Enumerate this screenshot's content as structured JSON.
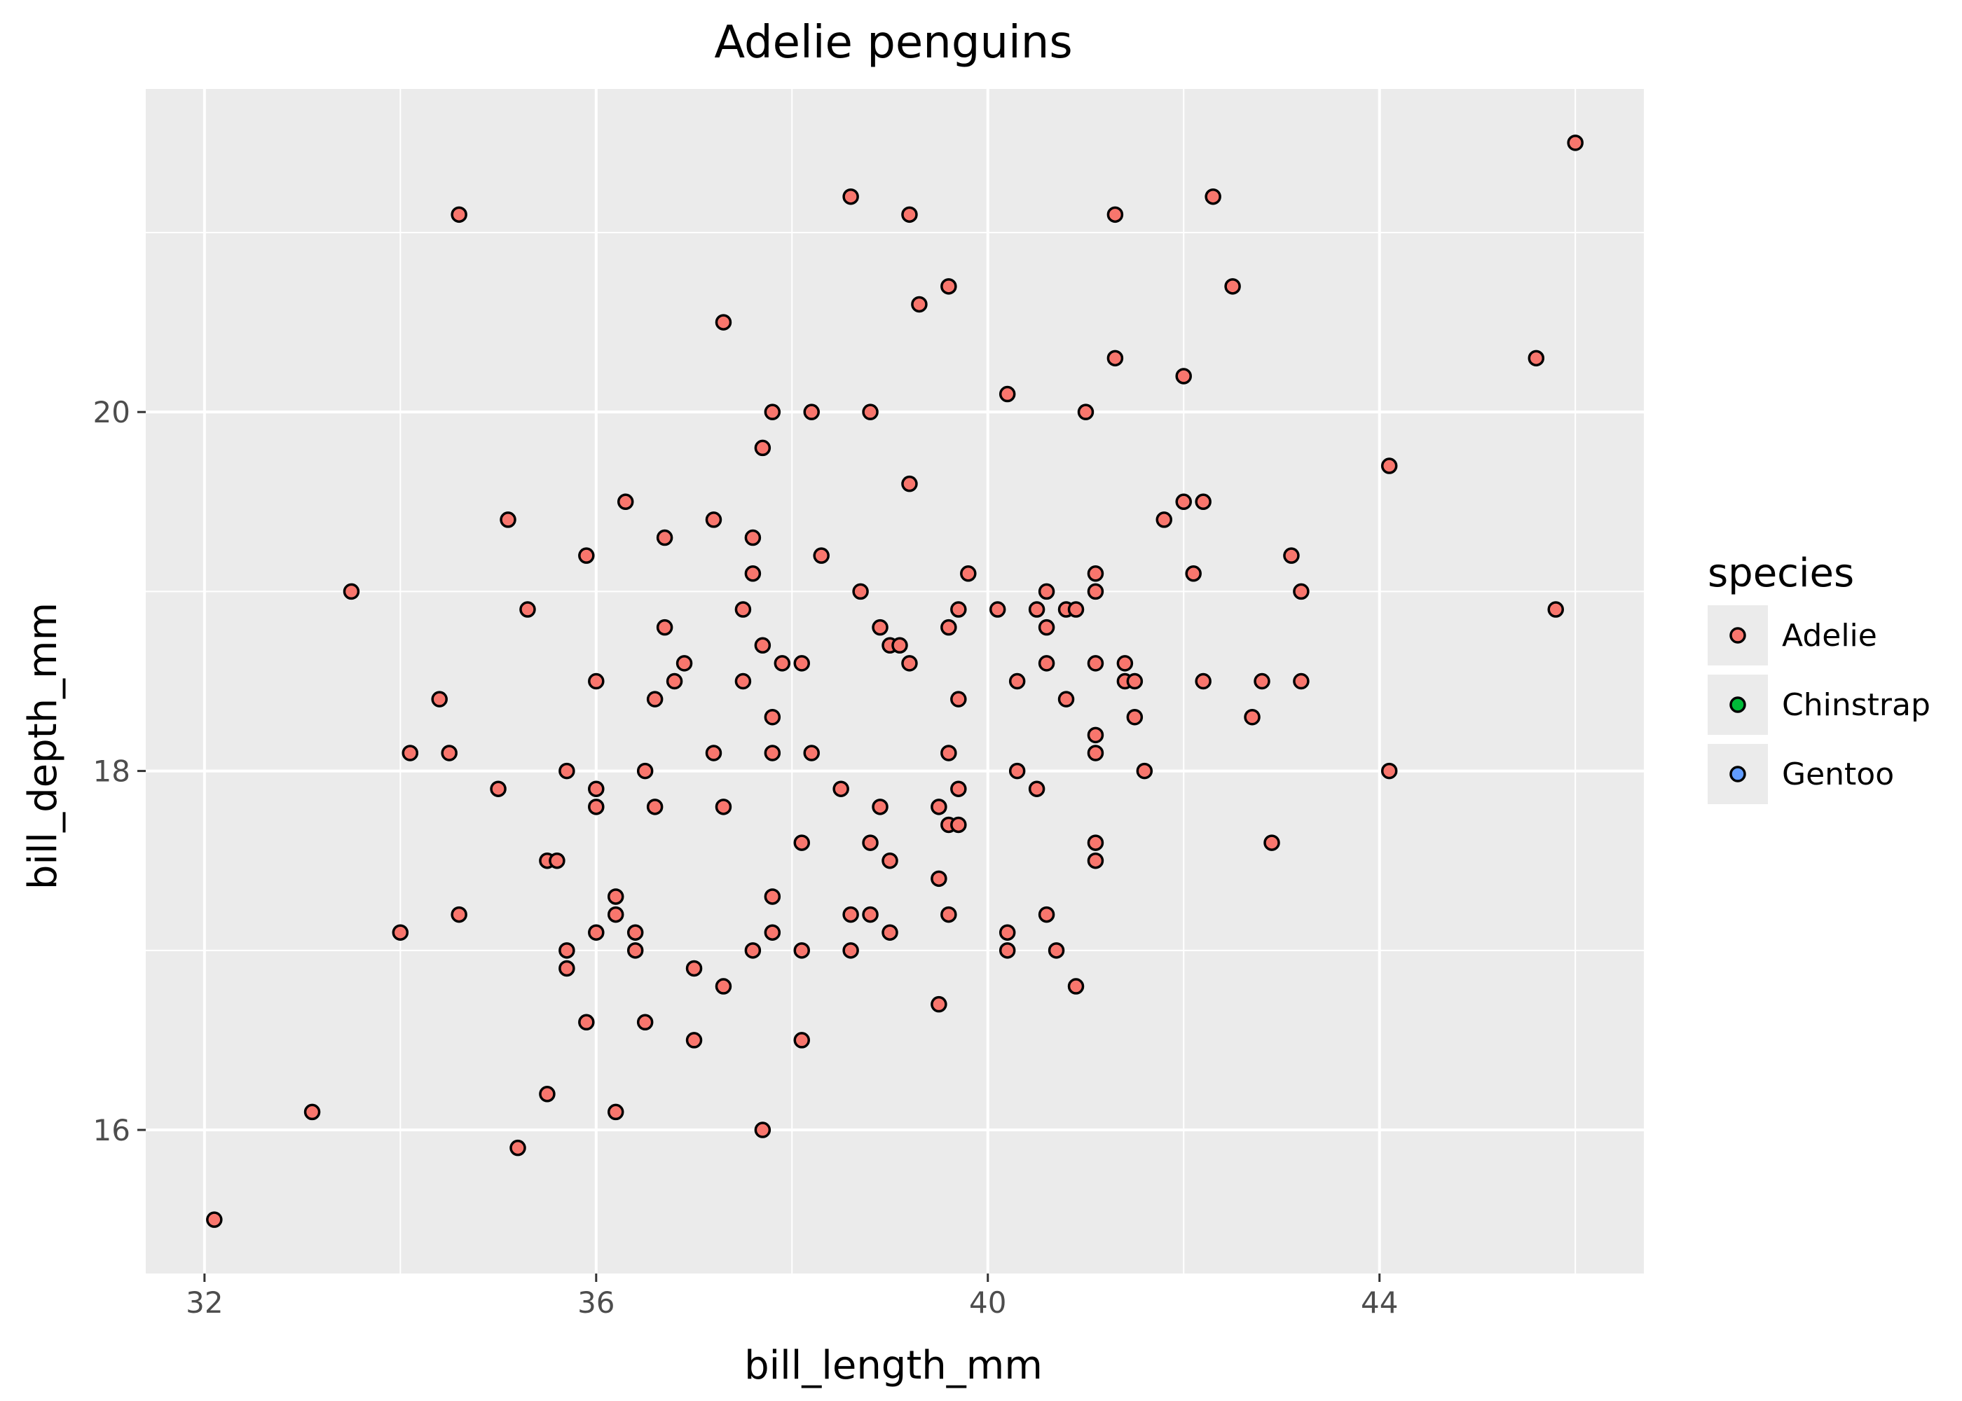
{
  "chart_data": {
    "type": "scatter",
    "title": "Adelie penguins",
    "xlabel": "bill_length_mm",
    "ylabel": "bill_depth_mm",
    "xlim": [
      31.4,
      46.7
    ],
    "ylim": [
      15.2,
      21.8
    ],
    "xticks": [
      32,
      36,
      40,
      44
    ],
    "yticks": [
      16,
      18,
      20
    ],
    "grid": true,
    "legend": {
      "title": "species",
      "placement": "right",
      "entries": [
        {
          "label": "Adelie",
          "color": "#F8766D"
        },
        {
          "label": "Chinstrap",
          "color": "#00BA38"
        },
        {
          "label": "Gentoo",
          "color": "#619CFF"
        }
      ]
    },
    "series": [
      {
        "name": "Adelie",
        "color": "#F8766D",
        "points": [
          [
            32.1,
            15.5
          ],
          [
            33.1,
            16.1
          ],
          [
            33.5,
            19.0
          ],
          [
            34.0,
            17.1
          ],
          [
            34.1,
            18.1
          ],
          [
            34.4,
            18.4
          ],
          [
            34.5,
            18.1
          ],
          [
            34.6,
            21.1
          ],
          [
            34.6,
            17.2
          ],
          [
            35.0,
            17.9
          ],
          [
            35.1,
            19.4
          ],
          [
            35.2,
            15.9
          ],
          [
            35.3,
            18.9
          ],
          [
            35.5,
            17.5
          ],
          [
            35.5,
            16.2
          ],
          [
            35.6,
            17.5
          ],
          [
            35.7,
            18.0
          ],
          [
            35.7,
            17.0
          ],
          [
            35.7,
            16.9
          ],
          [
            35.9,
            19.2
          ],
          [
            35.9,
            16.6
          ],
          [
            36.0,
            18.5
          ],
          [
            36.0,
            17.9
          ],
          [
            36.0,
            17.8
          ],
          [
            36.0,
            17.1
          ],
          [
            36.2,
            17.3
          ],
          [
            36.2,
            17.2
          ],
          [
            36.2,
            16.1
          ],
          [
            36.3,
            19.5
          ],
          [
            36.4,
            17.1
          ],
          [
            36.4,
            17.0
          ],
          [
            36.5,
            18.0
          ],
          [
            36.5,
            16.6
          ],
          [
            36.6,
            18.4
          ],
          [
            36.6,
            17.8
          ],
          [
            36.7,
            19.3
          ],
          [
            36.7,
            18.8
          ],
          [
            36.8,
            18.5
          ],
          [
            36.9,
            18.6
          ],
          [
            37.0,
            16.9
          ],
          [
            37.0,
            16.5
          ],
          [
            37.2,
            19.4
          ],
          [
            37.2,
            18.1
          ],
          [
            37.3,
            20.5
          ],
          [
            37.3,
            17.8
          ],
          [
            37.3,
            16.8
          ],
          [
            37.5,
            18.9
          ],
          [
            37.5,
            18.5
          ],
          [
            37.6,
            19.3
          ],
          [
            37.6,
            19.1
          ],
          [
            37.6,
            17.0
          ],
          [
            37.7,
            19.8
          ],
          [
            37.7,
            18.7
          ],
          [
            37.7,
            16.0
          ],
          [
            37.8,
            20.0
          ],
          [
            37.8,
            18.3
          ],
          [
            37.8,
            18.1
          ],
          [
            37.8,
            17.3
          ],
          [
            37.8,
            17.1
          ],
          [
            37.9,
            18.6
          ],
          [
            38.1,
            18.6
          ],
          [
            38.1,
            17.6
          ],
          [
            38.1,
            17.0
          ],
          [
            38.1,
            16.5
          ],
          [
            38.2,
            20.0
          ],
          [
            38.2,
            18.1
          ],
          [
            38.3,
            19.2
          ],
          [
            38.5,
            17.9
          ],
          [
            38.6,
            21.2
          ],
          [
            38.6,
            17.2
          ],
          [
            38.6,
            17.0
          ],
          [
            38.7,
            19.0
          ],
          [
            38.8,
            20.0
          ],
          [
            38.8,
            17.6
          ],
          [
            38.8,
            17.2
          ],
          [
            38.9,
            18.8
          ],
          [
            38.9,
            17.8
          ],
          [
            39.0,
            18.7
          ],
          [
            39.0,
            17.5
          ],
          [
            39.0,
            17.1
          ],
          [
            39.1,
            18.7
          ],
          [
            39.2,
            21.1
          ],
          [
            39.2,
            19.6
          ],
          [
            39.2,
            18.6
          ],
          [
            39.3,
            20.6
          ],
          [
            39.5,
            17.8
          ],
          [
            39.5,
            17.4
          ],
          [
            39.5,
            16.7
          ],
          [
            39.6,
            20.7
          ],
          [
            39.6,
            18.8
          ],
          [
            39.6,
            18.1
          ],
          [
            39.6,
            17.7
          ],
          [
            39.6,
            17.2
          ],
          [
            39.7,
            18.9
          ],
          [
            39.7,
            18.4
          ],
          [
            39.7,
            17.9
          ],
          [
            39.7,
            17.7
          ],
          [
            39.8,
            19.1
          ],
          [
            40.1,
            18.9
          ],
          [
            40.2,
            20.1
          ],
          [
            40.2,
            17.1
          ],
          [
            40.2,
            17.0
          ],
          [
            40.3,
            18.5
          ],
          [
            40.3,
            18.0
          ],
          [
            40.5,
            18.9
          ],
          [
            40.5,
            17.9
          ],
          [
            40.6,
            19.0
          ],
          [
            40.6,
            18.8
          ],
          [
            40.6,
            18.6
          ],
          [
            40.6,
            17.2
          ],
          [
            40.7,
            17.0
          ],
          [
            40.8,
            18.9
          ],
          [
            40.8,
            18.4
          ],
          [
            40.9,
            18.9
          ],
          [
            40.9,
            16.8
          ],
          [
            41.0,
            20.0
          ],
          [
            41.1,
            19.1
          ],
          [
            41.1,
            19.0
          ],
          [
            41.1,
            18.6
          ],
          [
            41.1,
            18.2
          ],
          [
            41.1,
            18.1
          ],
          [
            41.1,
            17.6
          ],
          [
            41.1,
            17.5
          ],
          [
            41.3,
            21.1
          ],
          [
            41.3,
            20.3
          ],
          [
            41.4,
            18.6
          ],
          [
            41.4,
            18.5
          ],
          [
            41.5,
            18.5
          ],
          [
            41.5,
            18.3
          ],
          [
            41.6,
            18.0
          ],
          [
            41.8,
            19.4
          ],
          [
            42.0,
            20.2
          ],
          [
            42.0,
            19.5
          ],
          [
            42.1,
            19.1
          ],
          [
            42.2,
            19.5
          ],
          [
            42.2,
            18.5
          ],
          [
            42.3,
            21.2
          ],
          [
            42.5,
            20.7
          ],
          [
            42.7,
            18.3
          ],
          [
            42.8,
            18.5
          ],
          [
            42.9,
            17.6
          ],
          [
            43.1,
            19.2
          ],
          [
            43.2,
            19.0
          ],
          [
            43.2,
            18.5
          ],
          [
            44.1,
            19.7
          ],
          [
            44.1,
            18.0
          ],
          [
            45.6,
            20.3
          ],
          [
            45.8,
            18.9
          ],
          [
            46.0,
            21.5
          ]
        ]
      }
    ]
  }
}
